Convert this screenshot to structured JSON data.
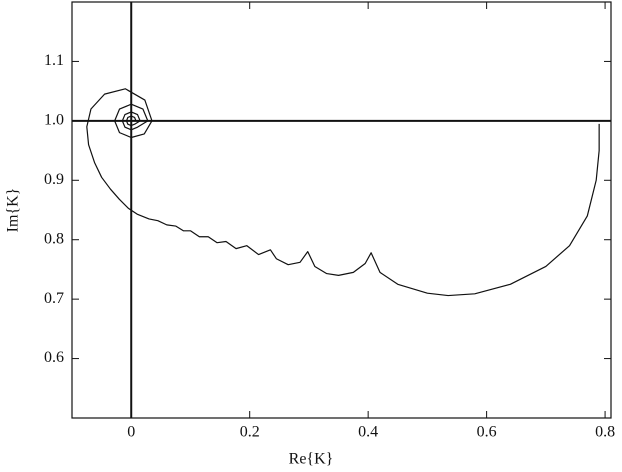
{
  "chart_data": {
    "type": "line",
    "xlabel": "Re{K}",
    "ylabel": "Im{K}",
    "xlim": [
      -0.1,
      0.81
    ],
    "ylim": [
      0.5,
      1.2
    ],
    "xticks": [
      0,
      0.2,
      0.4,
      0.6,
      0.8
    ],
    "yticks": [
      0.6,
      0.7,
      0.8,
      0.9,
      {
        "value": 1,
        "label": "1.0"
      },
      1.1
    ],
    "hlines": [
      1
    ],
    "vlines": [
      0
    ],
    "color": "#111111",
    "x": [
      0.008,
      0.0057,
      0,
      -0.0057,
      -0.008,
      -0.0057,
      0,
      0.0057,
      0.015,
      0.0106,
      0,
      -0.0106,
      -0.015,
      -0.0106,
      0,
      0.0106,
      0.028,
      0.0198,
      0,
      -0.0198,
      -0.028,
      -0.0198,
      0,
      0.022,
      0.035,
      0.023,
      -0.01,
      -0.045,
      -0.068,
      -0.075,
      -0.072,
      -0.062,
      -0.05,
      -0.035,
      -0.02,
      -0.005,
      0.01,
      0.03,
      0.045,
      0.06,
      0.075,
      0.088,
      0.1,
      0.115,
      0.13,
      0.145,
      0.16,
      0.177,
      0.195,
      0.215,
      0.235,
      0.245,
      0.265,
      0.285,
      0.298,
      0.31,
      0.33,
      0.35,
      0.375,
      0.395,
      0.405,
      0.42,
      0.45,
      0.5,
      0.535,
      0.58,
      0.64,
      0.7,
      0.74,
      0.77,
      0.785,
      0.79,
      0.79
    ],
    "values": [
      1,
      1.0057,
      1.008,
      1.0057,
      1,
      0.9943,
      0.992,
      0.9943,
      1,
      1.0106,
      1.015,
      1.0106,
      1,
      0.9894,
      0.985,
      0.9894,
      1,
      1.0198,
      1.028,
      1.0198,
      1,
      0.9802,
      0.972,
      0.978,
      1,
      1.035,
      1.054,
      1.045,
      1.02,
      0.99,
      0.96,
      0.93,
      0.905,
      0.885,
      0.868,
      0.853,
      0.843,
      0.835,
      0.832,
      0.825,
      0.823,
      0.815,
      0.815,
      0.805,
      0.805,
      0.795,
      0.797,
      0.785,
      0.79,
      0.775,
      0.783,
      0.768,
      0.758,
      0.762,
      0.78,
      0.755,
      0.743,
      0.74,
      0.745,
      0.76,
      0.778,
      0.745,
      0.725,
      0.71,
      0.706,
      0.709,
      0.725,
      0.755,
      0.79,
      0.84,
      0.9,
      0.95,
      0.995
    ]
  }
}
